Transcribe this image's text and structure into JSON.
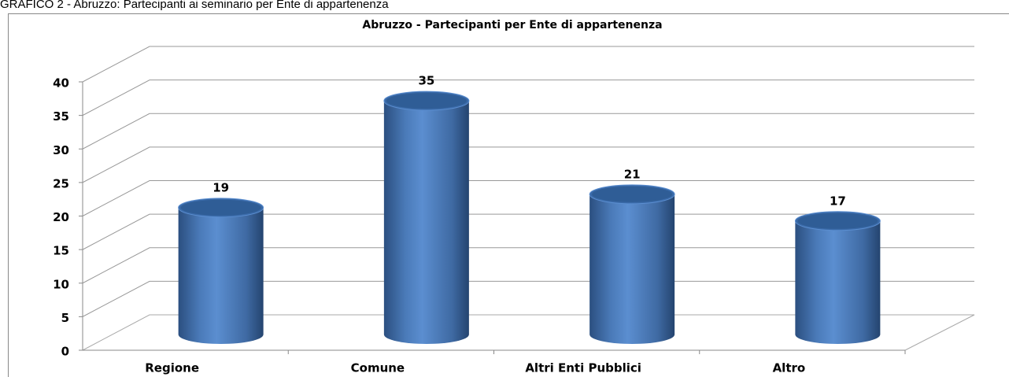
{
  "caption": "GRAFICO 2 - Abruzzo: Partecipanti ai seminario per Ente di appartenenza",
  "chart_data": {
    "type": "bar",
    "title": "Abruzzo - Partecipanti per Ente di appartenenza",
    "categories": [
      "Regione",
      "Comune",
      "Altri Enti Pubblici",
      "Altro"
    ],
    "values": [
      19,
      35,
      21,
      17
    ],
    "color": "#4f81bd",
    "ylim": [
      0,
      40
    ],
    "yticks": [
      0,
      5,
      10,
      15,
      20,
      25,
      30,
      35,
      40
    ],
    "grid": true
  }
}
